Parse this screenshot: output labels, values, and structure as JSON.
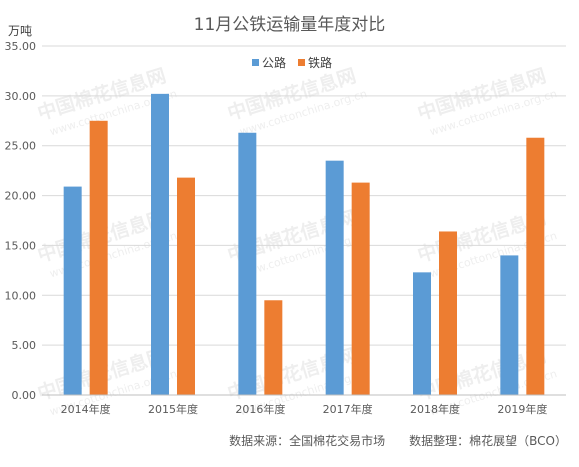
{
  "title": "11月公铁运输量年度对比",
  "unit": "万吨",
  "source": "数据来源：全国棉花交易市场　　数据整理：棉花展望（BCO）",
  "watermark": [
    "中国棉花信息网",
    "www.cottonchina.org.cn"
  ],
  "chart_data": {
    "type": "bar",
    "categories": [
      "2014年度",
      "2015年度",
      "2016年度",
      "2017年度",
      "2018年度",
      "2019年度"
    ],
    "series": [
      {
        "name": "公路",
        "color": "#5b9bd5",
        "values": [
          20.9,
          30.2,
          26.3,
          23.5,
          12.3,
          14.0
        ]
      },
      {
        "name": "铁路",
        "color": "#ed7d31",
        "values": [
          27.5,
          21.8,
          9.5,
          21.3,
          16.4,
          25.8
        ]
      }
    ],
    "ylim": [
      0,
      35
    ],
    "yticks": [
      "0.00",
      "5.00",
      "10.00",
      "15.00",
      "20.00",
      "25.00",
      "30.00",
      "35.00"
    ],
    "ytick_values": [
      0,
      5,
      10,
      15,
      20,
      25,
      30,
      35
    ],
    "grid": true,
    "legend": "top-center"
  }
}
